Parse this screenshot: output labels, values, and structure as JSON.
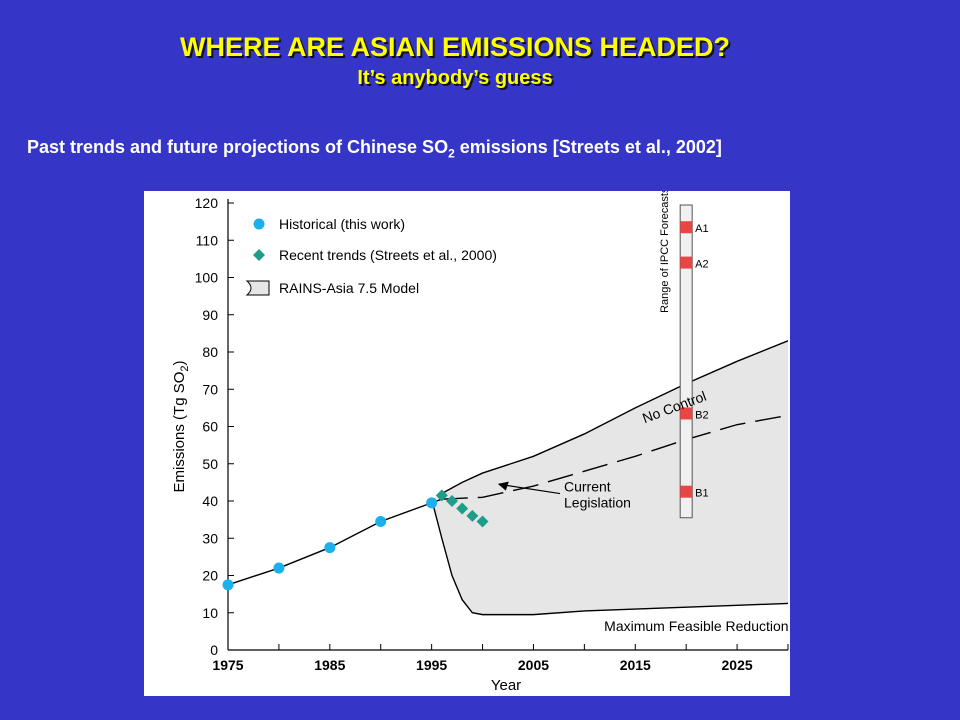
{
  "slide": {
    "title": "WHERE ARE ASIAN EMISSIONS HEADED?",
    "subtitle": "It’s anybody’s guess",
    "caption_prefix": "Past trends and future projections of Chinese SO",
    "caption_sub": "2",
    "caption_suffix": " emissions [Streets et al., 2002]",
    "colors": {
      "background": "#3535c8",
      "title": "#ffff00",
      "caption": "#ffffff"
    }
  },
  "chart_data": {
    "type": "line",
    "xlabel": "Year",
    "ylabel_prefix": "Emissions (Tg SO",
    "ylabel_sub": "2",
    "ylabel_suffix": ")",
    "xlim": [
      1975,
      2030
    ],
    "ylim": [
      0,
      120
    ],
    "x_ticks": [
      1975,
      1985,
      1995,
      2005,
      2015,
      2025
    ],
    "y_ticks": [
      0,
      10,
      20,
      30,
      40,
      50,
      60,
      70,
      80,
      90,
      100,
      110,
      120
    ],
    "grid": false,
    "legend": {
      "placement": "top-left",
      "items": [
        {
          "label": "Historical (this work)",
          "marker": "circle",
          "color": "#1ab0ec"
        },
        {
          "label": "Recent trends (Streets et al., 2000)",
          "marker": "diamond",
          "color": "#1e9e8a"
        },
        {
          "label": "RAINS-Asia 7.5 Model",
          "marker": "region",
          "color": "#e6e6e6"
        }
      ]
    },
    "series": [
      {
        "name": "Historical (this work)",
        "marker": "circle",
        "color": "#1ab0ec",
        "x": [
          1975,
          1980,
          1985,
          1990,
          1995
        ],
        "y": [
          17.5,
          22,
          27.5,
          34.5,
          39.5
        ],
        "trend_x": [
          1975,
          1980,
          1985,
          1990,
          1995,
          1996
        ],
        "trend_y": [
          17.5,
          22,
          27.5,
          34.5,
          39.5,
          40.5
        ]
      },
      {
        "name": "Recent trends (Streets et al., 2000)",
        "marker": "diamond",
        "color": "#1e9e8a",
        "x": [
          1996,
          1997,
          1998,
          1999,
          2000
        ],
        "y": [
          41.5,
          40,
          38,
          36,
          34.5
        ]
      },
      {
        "name": "No Control",
        "line": "solid",
        "x": [
          1996,
          1998,
          2000,
          2005,
          2010,
          2015,
          2020,
          2025,
          2030
        ],
        "y": [
          42,
          45,
          47.5,
          52,
          58,
          65,
          71.5,
          77.5,
          83
        ]
      },
      {
        "name": "Current Legislation",
        "line": "dashed",
        "x": [
          1996,
          2000,
          2005,
          2010,
          2015,
          2020,
          2025,
          2030
        ],
        "y": [
          40.5,
          41,
          44,
          48,
          52,
          56.5,
          60.5,
          63
        ]
      },
      {
        "name": "Maximum Feasible Reduction",
        "line": "solid",
        "x": [
          1995,
          1996,
          1997,
          1998,
          1999,
          2000,
          2005,
          2010,
          2015,
          2020,
          2025,
          2030
        ],
        "y": [
          40.5,
          30,
          20,
          13.5,
          10,
          9.5,
          9.5,
          10.5,
          11,
          11.5,
          12,
          12.5
        ]
      }
    ],
    "ipcc": {
      "label": "Range of IPCC Forecasts",
      "year": 2020,
      "range": [
        35.5,
        120
      ],
      "color": "#e84545",
      "points": [
        {
          "label": "A1",
          "y": 113.5
        },
        {
          "label": "A2",
          "y": 104
        },
        {
          "label": "B2",
          "y": 63.5
        },
        {
          "label": "B1",
          "y": 42.5
        }
      ]
    },
    "annotations": [
      {
        "text": "No Control",
        "x": 2019,
        "y": 64
      },
      {
        "text_lines": [
          "Current",
          "Legislation"
        ],
        "x": 2008,
        "y": 41
      },
      {
        "text": "Maximum Feasible Reduction",
        "x": 2021,
        "y": 6.5
      }
    ]
  }
}
